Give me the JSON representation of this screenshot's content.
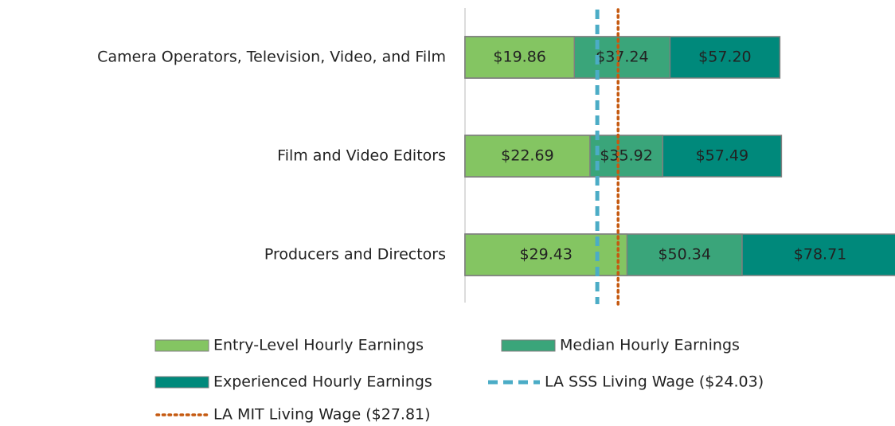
{
  "chart_data": {
    "type": "bar",
    "orientation": "horizontal",
    "overlap": true,
    "categories": [
      "Camera Operators, Television, Video, and Film",
      "Film and Video Editors",
      "Producers and Directors"
    ],
    "series": [
      {
        "name": "Entry-Level Hourly Earnings",
        "color": "#84c562",
        "values": [
          19.86,
          22.69,
          29.43
        ],
        "value_labels": [
          "$19.86",
          "$22.69",
          "$29.43"
        ]
      },
      {
        "name": "Median Hourly Earnings",
        "color": "#3aa57a",
        "values": [
          37.24,
          35.92,
          50.34
        ],
        "value_labels": [
          "$37.24",
          "$35.92",
          "$50.34"
        ]
      },
      {
        "name": "Experienced Hourly Earnings",
        "color": "#00897b",
        "values": [
          57.2,
          57.49,
          78.71
        ],
        "value_labels": [
          "$57.20",
          "$57.49",
          "$78.71"
        ]
      }
    ],
    "reference_lines": [
      {
        "name": "LA SSS Living Wage ($24.03)",
        "value": 24.03,
        "color": "#4bacc6",
        "style": "dashed"
      },
      {
        "name": "LA MIT Living Wage ($27.81)",
        "value": 27.81,
        "color": "#c55a11",
        "style": "dotted"
      }
    ],
    "xlim": [
      0,
      80
    ],
    "legend": "bottom"
  }
}
